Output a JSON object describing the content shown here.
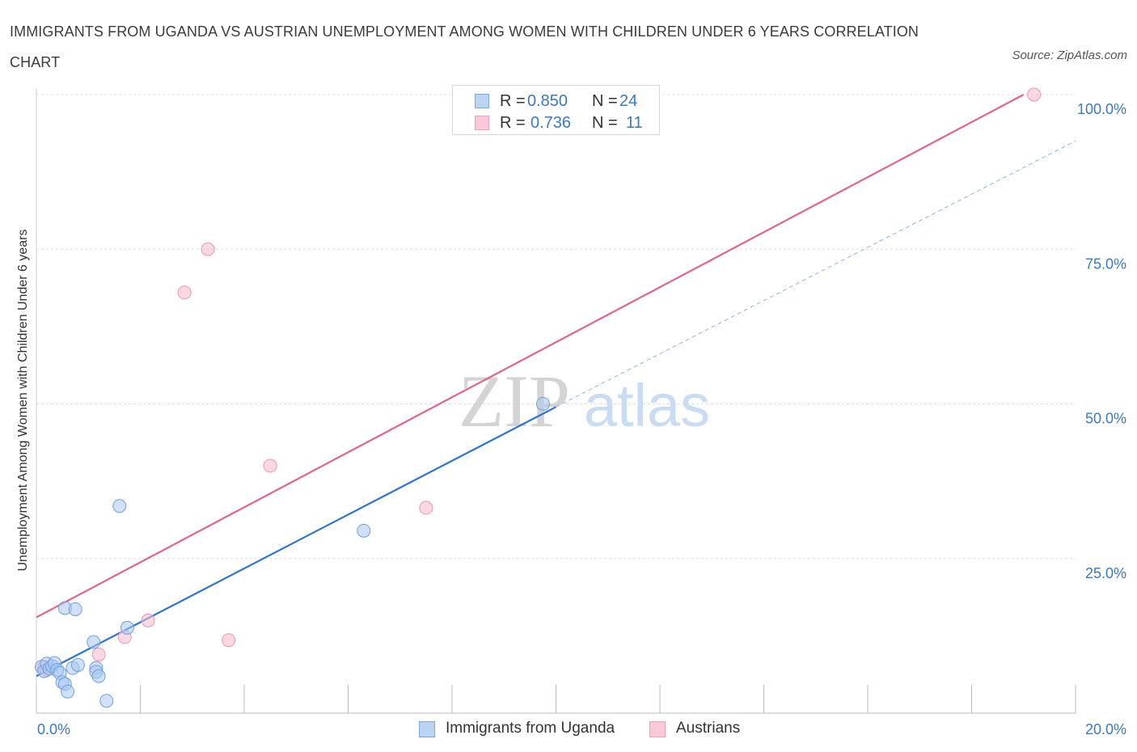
{
  "title": "IMMIGRANTS FROM UGANDA VS AUSTRIAN UNEMPLOYMENT AMONG WOMEN WITH CHILDREN UNDER 6 YEARS CORRELATION CHART",
  "source": "Source: ZipAtlas.com",
  "watermark": {
    "zip": "ZIP",
    "atlas": "atlas"
  },
  "legend": {
    "rows": [
      {
        "r_label": "R =",
        "r_value": "0.850",
        "n_label": "N =",
        "n_value": "24"
      },
      {
        "r_label": "R =",
        "r_value": "0.736",
        "n_label": "N =",
        "n_value": "11"
      }
    ]
  },
  "bottom_legend": {
    "series1": "Immigrants from Uganda",
    "series2": "Austrians"
  },
  "colors": {
    "blue_fill": "#a9c8f0",
    "blue_stroke": "#6fa1de",
    "blue_line": "#2f74d0",
    "pink_fill": "#f6b9ca",
    "pink_stroke": "#ee95b0",
    "pink_line": "#e0658a",
    "axis_text": "#3a78c9",
    "grid": "#dddddd"
  },
  "chart_data": {
    "type": "scatter",
    "title": "IMMIGRANTS FROM UGANDA VS AUSTRIAN UNEMPLOYMENT AMONG WOMEN WITH CHILDREN UNDER 6 YEARS CORRELATION CHART",
    "xlabel": "",
    "ylabel": "Unemployment Among Women with Children Under 6 years",
    "xlim": [
      0,
      20
    ],
    "ylim": [
      0,
      100
    ],
    "x_tick_labels": [
      "0.0%",
      "20.0%"
    ],
    "y_ticks": [
      25,
      50,
      75,
      100
    ],
    "y_tick_labels": [
      "25.0%",
      "50.0%",
      "75.0%",
      "100.0%"
    ],
    "grid": true,
    "series": [
      {
        "name": "Immigrants from Uganda",
        "color": "#a9c8f0",
        "points": [
          [
            0.1,
            7.5
          ],
          [
            0.15,
            6.8
          ],
          [
            0.2,
            8.0
          ],
          [
            0.25,
            7.2
          ],
          [
            0.3,
            7.6
          ],
          [
            0.35,
            8.1
          ],
          [
            0.4,
            7.0
          ],
          [
            0.45,
            6.5
          ],
          [
            0.5,
            5.0
          ],
          [
            0.55,
            4.7
          ],
          [
            0.55,
            17.0
          ],
          [
            0.6,
            3.5
          ],
          [
            0.7,
            7.3
          ],
          [
            0.75,
            16.8
          ],
          [
            0.8,
            7.8
          ],
          [
            1.1,
            11.5
          ],
          [
            1.15,
            7.3
          ],
          [
            1.15,
            6.7
          ],
          [
            1.2,
            6.0
          ],
          [
            1.35,
            2.0
          ],
          [
            1.6,
            33.5
          ],
          [
            1.75,
            13.8
          ],
          [
            6.3,
            29.5
          ],
          [
            9.75,
            50.0
          ]
        ],
        "trend": {
          "x": [
            0,
            10
          ],
          "y": [
            6.0,
            49.5
          ],
          "dashed_to": [
            20,
            92.5
          ]
        }
      },
      {
        "name": "Austrians",
        "color": "#f6b9ca",
        "points": [
          [
            0.15,
            7.5
          ],
          [
            0.2,
            7.0
          ],
          [
            1.2,
            9.5
          ],
          [
            1.7,
            12.3
          ],
          [
            2.15,
            15.0
          ],
          [
            2.85,
            68.0
          ],
          [
            3.3,
            75.0
          ],
          [
            3.7,
            11.8
          ],
          [
            4.5,
            40.0
          ],
          [
            7.5,
            33.2
          ],
          [
            19.2,
            100.0
          ]
        ],
        "trend": {
          "x": [
            0,
            19.0
          ],
          "y": [
            15.5,
            100.0
          ]
        }
      }
    ]
  }
}
